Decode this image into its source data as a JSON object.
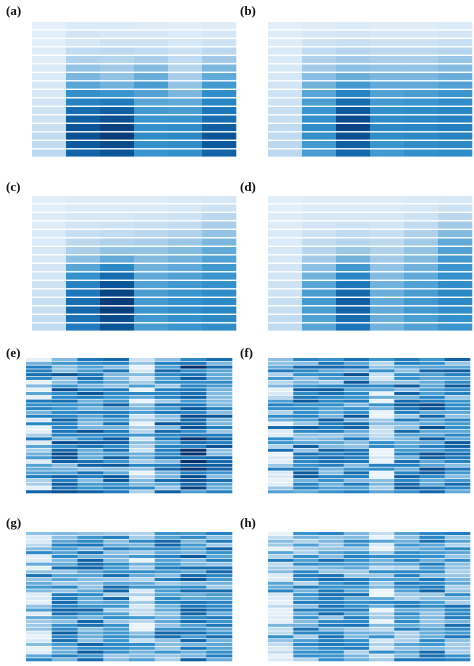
{
  "figure": {
    "background": "#ffffff",
    "colormap": [
      "#eef5fb",
      "#d2e5f4",
      "#a8cde9",
      "#6eb0db",
      "#3592cc",
      "#1d78bb",
      "#0a5699",
      "#08306b"
    ]
  },
  "chart_data": [
    {
      "type": "heatmap",
      "label": "(a)",
      "value_range": [
        0,
        1
      ],
      "columns": 6,
      "rows": 16,
      "values": [
        [
          0.05,
          0.1,
          0.1,
          0.08,
          0.06,
          0.08
        ],
        [
          0.06,
          0.14,
          0.12,
          0.12,
          0.1,
          0.12
        ],
        [
          0.06,
          0.12,
          0.16,
          0.16,
          0.12,
          0.16
        ],
        [
          0.08,
          0.2,
          0.22,
          0.2,
          0.16,
          0.22
        ],
        [
          0.08,
          0.26,
          0.24,
          0.28,
          0.2,
          0.3
        ],
        [
          0.1,
          0.34,
          0.3,
          0.38,
          0.24,
          0.4
        ],
        [
          0.1,
          0.4,
          0.34,
          0.44,
          0.28,
          0.46
        ],
        [
          0.12,
          0.48,
          0.42,
          0.52,
          0.34,
          0.54
        ],
        [
          0.12,
          0.58,
          0.56,
          0.5,
          0.4,
          0.6
        ],
        [
          0.14,
          0.66,
          0.7,
          0.48,
          0.46,
          0.64
        ],
        [
          0.16,
          0.76,
          0.82,
          0.54,
          0.52,
          0.72
        ],
        [
          0.16,
          0.82,
          0.88,
          0.56,
          0.56,
          0.76
        ],
        [
          0.18,
          0.86,
          0.94,
          0.58,
          0.6,
          0.82
        ],
        [
          0.2,
          0.88,
          0.96,
          0.6,
          0.62,
          0.86
        ],
        [
          0.2,
          0.84,
          0.9,
          0.58,
          0.6,
          0.84
        ],
        [
          0.22,
          0.8,
          0.86,
          0.56,
          0.58,
          0.8
        ]
      ]
    },
    {
      "type": "heatmap",
      "label": "(b)",
      "value_range": [
        0,
        1
      ],
      "columns": 6,
      "rows": 16,
      "values": [
        [
          0.06,
          0.08,
          0.1,
          0.08,
          0.08,
          0.1
        ],
        [
          0.08,
          0.12,
          0.14,
          0.12,
          0.12,
          0.14
        ],
        [
          0.08,
          0.16,
          0.18,
          0.16,
          0.16,
          0.18
        ],
        [
          0.1,
          0.2,
          0.24,
          0.22,
          0.22,
          0.24
        ],
        [
          0.1,
          0.26,
          0.3,
          0.28,
          0.28,
          0.32
        ],
        [
          0.12,
          0.3,
          0.36,
          0.34,
          0.34,
          0.38
        ],
        [
          0.12,
          0.36,
          0.44,
          0.4,
          0.4,
          0.44
        ],
        [
          0.14,
          0.42,
          0.54,
          0.46,
          0.46,
          0.5
        ],
        [
          0.16,
          0.48,
          0.66,
          0.5,
          0.52,
          0.56
        ],
        [
          0.16,
          0.52,
          0.76,
          0.54,
          0.56,
          0.6
        ],
        [
          0.18,
          0.56,
          0.84,
          0.58,
          0.6,
          0.64
        ],
        [
          0.18,
          0.58,
          0.9,
          0.6,
          0.62,
          0.66
        ],
        [
          0.2,
          0.6,
          0.92,
          0.62,
          0.64,
          0.68
        ],
        [
          0.2,
          0.58,
          0.88,
          0.6,
          0.62,
          0.66
        ],
        [
          0.22,
          0.54,
          0.82,
          0.56,
          0.6,
          0.62
        ],
        [
          0.22,
          0.52,
          0.78,
          0.54,
          0.58,
          0.6
        ]
      ]
    },
    {
      "type": "heatmap",
      "label": "(c)",
      "value_range": [
        0,
        1
      ],
      "columns": 6,
      "rows": 16,
      "values": [
        [
          0.06,
          0.08,
          0.08,
          0.08,
          0.1,
          0.12
        ],
        [
          0.06,
          0.1,
          0.1,
          0.1,
          0.12,
          0.16
        ],
        [
          0.08,
          0.12,
          0.12,
          0.14,
          0.16,
          0.22
        ],
        [
          0.08,
          0.14,
          0.16,
          0.18,
          0.2,
          0.28
        ],
        [
          0.1,
          0.18,
          0.2,
          0.22,
          0.26,
          0.34
        ],
        [
          0.1,
          0.22,
          0.26,
          0.28,
          0.32,
          0.4
        ],
        [
          0.12,
          0.28,
          0.34,
          0.34,
          0.38,
          0.46
        ],
        [
          0.12,
          0.36,
          0.46,
          0.38,
          0.42,
          0.5
        ],
        [
          0.14,
          0.48,
          0.62,
          0.42,
          0.46,
          0.54
        ],
        [
          0.14,
          0.58,
          0.76,
          0.46,
          0.5,
          0.56
        ],
        [
          0.16,
          0.66,
          0.86,
          0.5,
          0.54,
          0.58
        ],
        [
          0.16,
          0.72,
          0.92,
          0.52,
          0.56,
          0.6
        ],
        [
          0.18,
          0.76,
          0.96,
          0.54,
          0.58,
          0.62
        ],
        [
          0.18,
          0.78,
          0.94,
          0.56,
          0.6,
          0.64
        ],
        [
          0.2,
          0.74,
          0.9,
          0.54,
          0.58,
          0.62
        ],
        [
          0.2,
          0.7,
          0.86,
          0.52,
          0.56,
          0.6
        ]
      ]
    },
    {
      "type": "heatmap",
      "label": "(d)",
      "value_range": [
        0,
        1
      ],
      "columns": 6,
      "rows": 16,
      "values": [
        [
          0.06,
          0.08,
          0.08,
          0.08,
          0.1,
          0.12
        ],
        [
          0.06,
          0.1,
          0.1,
          0.1,
          0.12,
          0.16
        ],
        [
          0.08,
          0.12,
          0.12,
          0.12,
          0.16,
          0.22
        ],
        [
          0.08,
          0.14,
          0.16,
          0.14,
          0.2,
          0.3
        ],
        [
          0.1,
          0.16,
          0.2,
          0.18,
          0.26,
          0.38
        ],
        [
          0.1,
          0.2,
          0.24,
          0.22,
          0.3,
          0.46
        ],
        [
          0.12,
          0.24,
          0.32,
          0.26,
          0.34,
          0.5
        ],
        [
          0.12,
          0.3,
          0.42,
          0.3,
          0.38,
          0.54
        ],
        [
          0.14,
          0.36,
          0.54,
          0.34,
          0.42,
          0.56
        ],
        [
          0.14,
          0.42,
          0.64,
          0.38,
          0.46,
          0.58
        ],
        [
          0.16,
          0.48,
          0.72,
          0.42,
          0.5,
          0.6
        ],
        [
          0.16,
          0.52,
          0.78,
          0.44,
          0.52,
          0.62
        ],
        [
          0.18,
          0.54,
          0.82,
          0.46,
          0.54,
          0.62
        ],
        [
          0.18,
          0.52,
          0.8,
          0.46,
          0.54,
          0.6
        ],
        [
          0.2,
          0.5,
          0.76,
          0.44,
          0.52,
          0.58
        ],
        [
          0.2,
          0.48,
          0.72,
          0.42,
          0.5,
          0.56
        ]
      ]
    },
    {
      "type": "heatmap",
      "label": "(e)",
      "value_range": [
        0,
        1
      ],
      "columns": 8,
      "rows": 36,
      "seed": 11,
      "column_means": [
        0.55,
        0.62,
        0.6,
        0.58,
        0.4,
        0.58,
        0.78,
        0.6
      ],
      "column_spread": 0.28
    },
    {
      "type": "heatmap",
      "label": "(f)",
      "value_range": [
        0,
        1
      ],
      "columns": 8,
      "rows": 36,
      "seed": 23,
      "column_means": [
        0.5,
        0.6,
        0.56,
        0.62,
        0.38,
        0.58,
        0.72,
        0.58
      ],
      "column_spread": 0.28
    },
    {
      "type": "heatmap",
      "label": "(g)",
      "value_range": [
        0,
        1
      ],
      "columns": 8,
      "rows": 34,
      "seed": 37,
      "column_means": [
        0.48,
        0.56,
        0.58,
        0.54,
        0.36,
        0.54,
        0.62,
        0.56
      ],
      "column_spread": 0.26
    },
    {
      "type": "heatmap",
      "label": "(h)",
      "value_range": [
        0,
        1
      ],
      "columns": 8,
      "rows": 34,
      "seed": 53,
      "column_means": [
        0.44,
        0.5,
        0.54,
        0.52,
        0.36,
        0.5,
        0.56,
        0.5
      ],
      "column_spread": 0.26
    }
  ]
}
